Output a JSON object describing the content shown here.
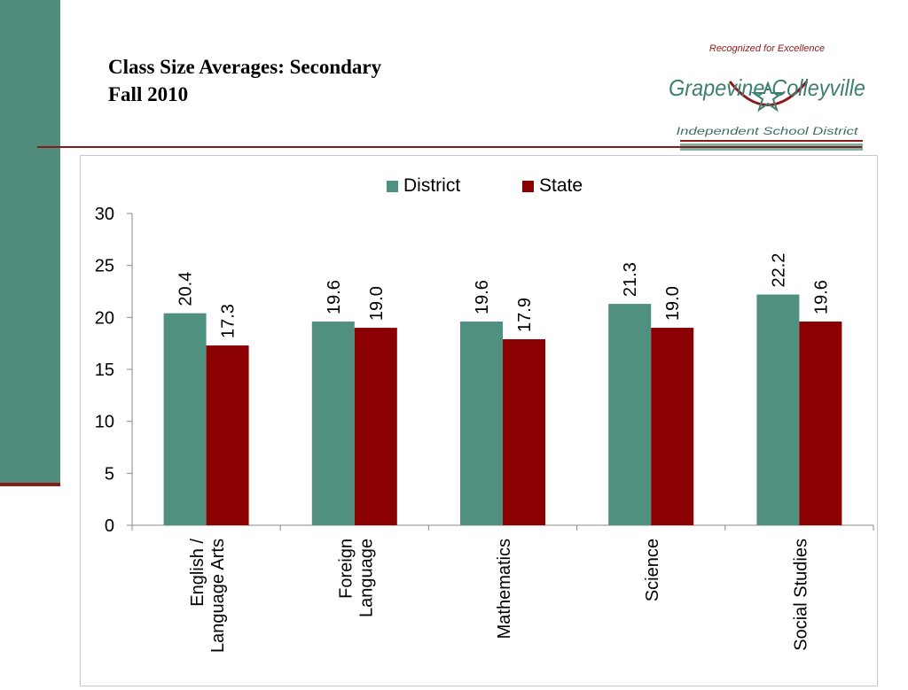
{
  "slide": {
    "title_line1": "Class Size Averages: Secondary",
    "title_line2": "Fall 2010"
  },
  "logo": {
    "tagline": "Recognized for Excellence",
    "name": "Grapevine-Colleyville",
    "subtitle": "Independent School District",
    "icon": "star-icon"
  },
  "colors": {
    "accent_green": "#4f8c7c",
    "accent_red": "#8b1a1a",
    "district": "#4f9080",
    "state": "#8b0000"
  },
  "chart_data": {
    "type": "bar",
    "categories": [
      [
        "English /",
        "Language Arts"
      ],
      [
        "Foreign",
        "Language"
      ],
      [
        "Mathematics"
      ],
      [
        "Science"
      ],
      [
        "Social Studies"
      ]
    ],
    "series": [
      {
        "name": "District",
        "values": [
          20.4,
          19.6,
          19.6,
          21.3,
          22.2
        ],
        "labels": [
          "20.4",
          "19.6",
          "19.6",
          "21.3",
          "22.2"
        ],
        "color": "#4f9080"
      },
      {
        "name": "State",
        "values": [
          17.3,
          19.0,
          17.9,
          19.0,
          19.6
        ],
        "labels": [
          "17.3",
          "19.0",
          "17.9",
          "19.0",
          "19.6"
        ],
        "color": "#8b0000"
      }
    ],
    "ylim": [
      0,
      30
    ],
    "yticks": [
      "0",
      "5",
      "10",
      "15",
      "20",
      "25",
      "30"
    ],
    "legend_position": "top-center",
    "grid": false
  }
}
